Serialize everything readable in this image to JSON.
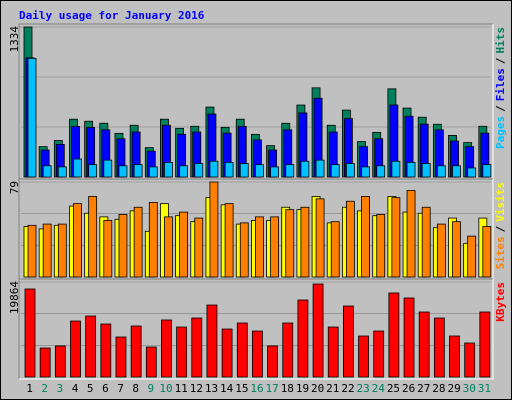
{
  "chart_data": {
    "type": "bar",
    "title": "Daily usage for January 2016",
    "categories": [
      "1",
      "2",
      "3",
      "4",
      "5",
      "6",
      "7",
      "8",
      "9",
      "10",
      "11",
      "12",
      "13",
      "14",
      "15",
      "16",
      "17",
      "18",
      "19",
      "20",
      "21",
      "22",
      "23",
      "24",
      "25",
      "26",
      "27",
      "28",
      "29",
      "30",
      "31"
    ],
    "category_colors": [
      "#000000",
      "#00805c",
      "#00805c",
      "#000000",
      "#000000",
      "#000000",
      "#000000",
      "#000000",
      "#00805c",
      "#00805c",
      "#000000",
      "#000000",
      "#000000",
      "#000000",
      "#000000",
      "#00805c",
      "#00805c",
      "#000000",
      "#000000",
      "#000000",
      "#000000",
      "#000000",
      "#00805c",
      "#00805c",
      "#000000",
      "#000000",
      "#000000",
      "#000000",
      "#000000",
      "#00805c",
      "#00805c"
    ],
    "legend_separator": "/",
    "panels": [
      {
        "ylim": [
          0,
          1334
        ],
        "yticks": [
          1334
        ],
        "series": [
          {
            "name": "Hits",
            "color": "#00805c",
            "values": [
              1334,
              270,
              324,
              514,
              496,
              478,
              388,
              460,
              261,
              514,
              433,
              451,
              622,
              442,
              514,
              379,
              279,
              478,
              640,
              793,
              460,
              595,
              315,
              397,
              784,
              613,
              532,
              469,
              370,
              306,
              451
            ]
          },
          {
            "name": "Files",
            "color": "#0000ff",
            "values": [
              1060,
              240,
              290,
              450,
              440,
              420,
              340,
              400,
              230,
              460,
              380,
              400,
              560,
              390,
              450,
              330,
              240,
              420,
              570,
              700,
              400,
              520,
              270,
              340,
              640,
              540,
              470,
              420,
              320,
              270,
              390
            ]
          },
          {
            "name": "Pages",
            "color": "#00c0ff",
            "values": [
              1055,
              100,
              90,
              160,
              110,
              150,
              100,
              110,
              90,
              130,
              100,
              120,
              140,
              130,
              120,
              110,
              90,
              110,
              140,
              150,
              110,
              120,
              90,
              100,
              140,
              130,
              120,
              100,
              100,
              80,
              110
            ]
          }
        ]
      },
      {
        "ylim": [
          0,
          79
        ],
        "yticks": [
          79
        ],
        "series": [
          {
            "name": "Visits",
            "color": "#ffff00",
            "values": [
              42,
              40,
              43,
              59,
              53,
              50,
              48,
              55,
              38,
              61,
              51,
              46,
              66,
              60,
              44,
              47,
              47,
              58,
              56,
              67,
              45,
              58,
              55,
              51,
              67,
              54,
              53,
              41,
              49,
              28,
              49
            ]
          },
          {
            "name": "Sites",
            "color": "#ff8000",
            "values": [
              43,
              44,
              44,
              61,
              67,
              47,
              52,
              58,
              62,
              50,
              54,
              49,
              79,
              61,
              45,
              50,
              50,
              56,
              58,
              65,
              46,
              63,
              67,
              52,
              66,
              72,
              58,
              44,
              46,
              34,
              42
            ]
          }
        ]
      },
      {
        "ylim": [
          0,
          19864
        ],
        "yticks": [
          19864
        ],
        "series": [
          {
            "name": "KBytes",
            "color": "#ff0000",
            "values": [
              18400,
              6060,
              6480,
              11700,
              12750,
              11080,
              8360,
              10660,
              6270,
              11920,
              10450,
              12330,
              15050,
              10030,
              11290,
              9610,
              6480,
              11290,
              16100,
              19440,
              10450,
              14840,
              8570,
              9610,
              17570,
              16520,
              13590,
              12330,
              8570,
              7110,
              13590
            ]
          }
        ]
      }
    ]
  }
}
